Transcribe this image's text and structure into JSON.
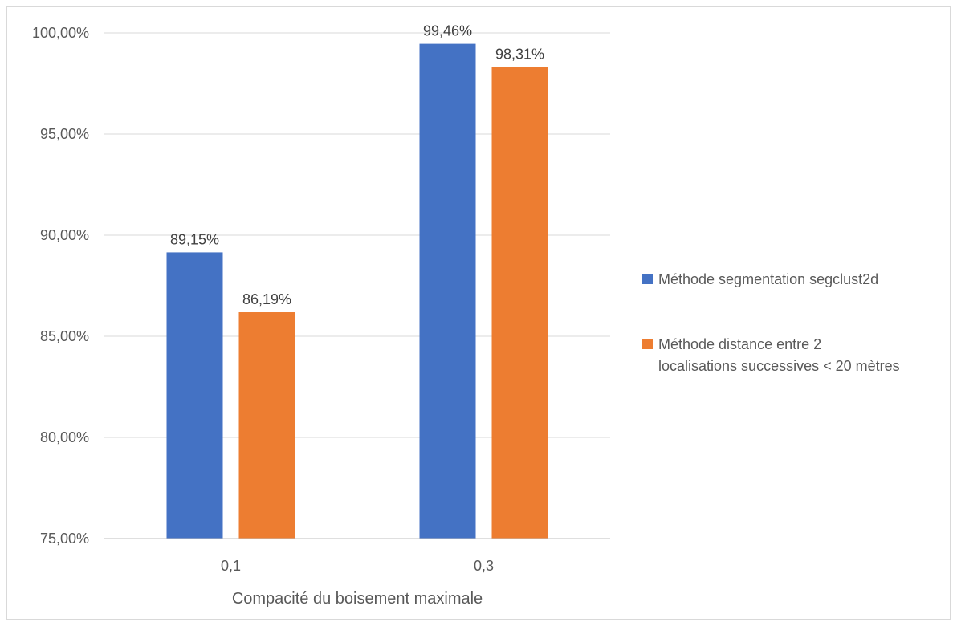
{
  "chart_data": {
    "type": "bar",
    "categories": [
      "0,1",
      "0,3"
    ],
    "series": [
      {
        "name": "Méthode segmentation segclust2d",
        "values": [
          89.15,
          99.46
        ],
        "labels": [
          "89,15%",
          "99,46%"
        ],
        "color": "#4472C4"
      },
      {
        "name_lines": [
          "Méthode distance entre 2",
          "localisations successives < 20 mètres"
        ],
        "values": [
          86.19,
          98.31
        ],
        "labels": [
          "86,19%",
          "98,31%"
        ],
        "color": "#ED7D31"
      }
    ],
    "title": "",
    "xlabel": "Compacité du boisement maximale",
    "ylabel": "",
    "ylim": [
      75,
      100
    ],
    "yticks": [
      75,
      80,
      85,
      90,
      95,
      100
    ],
    "ytick_labels": [
      "75,00%",
      "80,00%",
      "85,00%",
      "90,00%",
      "95,00%",
      "100,00%"
    ],
    "grid": true,
    "legend_position": "right"
  }
}
